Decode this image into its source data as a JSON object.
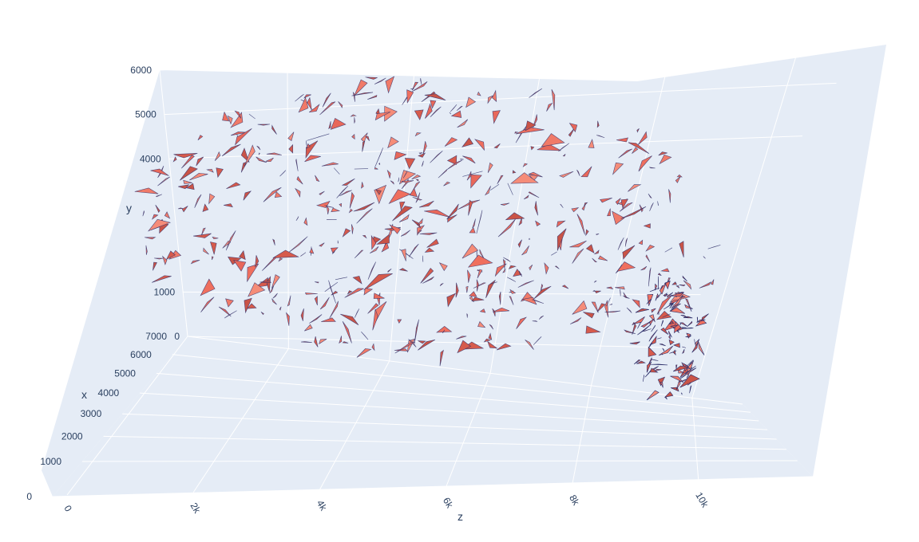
{
  "chart_data": {
    "type": "mesh3d",
    "title": "",
    "axes": {
      "x": {
        "label": "x",
        "range": [
          0,
          7000
        ],
        "ticks": [
          "0",
          "1000",
          "2000",
          "3000",
          "4000",
          "5000",
          "6000",
          "7000"
        ]
      },
      "y": {
        "label": "y",
        "range": [
          0,
          6000
        ],
        "ticks": [
          "0",
          "1000",
          "4000",
          "5000",
          "6000"
        ]
      },
      "z": {
        "label": "z",
        "range": [
          0,
          11000
        ],
        "ticks": [
          "0",
          "2k",
          "4k",
          "6k",
          "8k",
          "10k"
        ]
      }
    },
    "grid": true,
    "legend": false,
    "series": [
      {
        "kind": "surface-mesh",
        "color": "#ef6f5e",
        "edge_color": "#2b2f6b"
      }
    ],
    "colors": {
      "scene_background": "#e5ecf6",
      "gridline": "#ffffff",
      "tick_text": "#2a3f5f"
    }
  }
}
